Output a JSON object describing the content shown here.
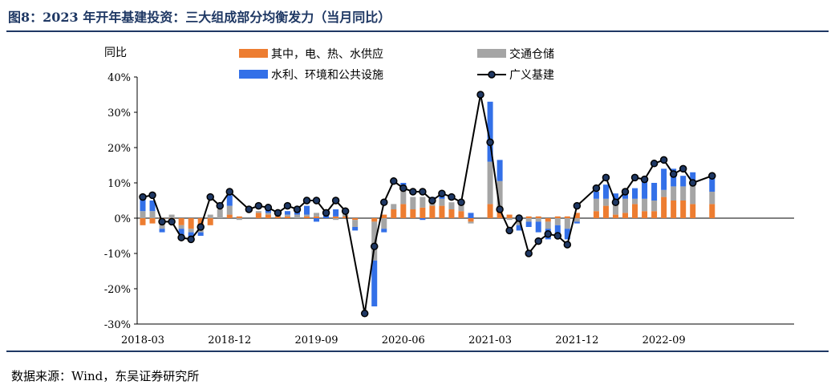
{
  "title": "图8：2023 年开年基建投资：三大组成部分均衡发力（当月同比）",
  "source": "数据来源：Wind，东吴证券研究所",
  "colors": {
    "utilities": "#ED7D31",
    "transport": "#A5A5A5",
    "water_env": "#3370E8",
    "line": "#000000",
    "marker_fill": "#1F3864",
    "title": "#1F3864"
  },
  "chart_data": {
    "type": "bar",
    "stacked": true,
    "ylabel": "同比",
    "ylim": [
      -30,
      40
    ],
    "yticks": [
      "-30%",
      "-20%",
      "-10%",
      "0%",
      "10%",
      "20%",
      "30%",
      "40%"
    ],
    "x_tick_labels": [
      "2018-03",
      "2018-12",
      "2019-09",
      "2020-06",
      "2021-03",
      "2021-12",
      "2022-09"
    ],
    "legend_placement": "top",
    "categories": [
      "2018-03",
      "2018-04",
      "2018-05",
      "2018-06",
      "2018-07",
      "2018-08",
      "2018-09",
      "2018-10",
      "2018-11",
      "2018-12",
      "2019-01",
      "2019-02",
      "2019-03",
      "2019-04",
      "2019-05",
      "2019-06",
      "2019-07",
      "2019-08",
      "2019-09",
      "2019-10",
      "2019-11",
      "2019-12",
      "2020-01",
      "2020-02",
      "2020-03",
      "2020-04",
      "2020-05",
      "2020-06",
      "2020-07",
      "2020-08",
      "2020-09",
      "2020-10",
      "2020-11",
      "2020-12",
      "2021-01",
      "2021-02",
      "2021-03",
      "2021-04",
      "2021-05",
      "2021-06",
      "2021-07",
      "2021-08",
      "2021-09",
      "2021-10",
      "2021-11",
      "2021-12",
      "2022-01",
      "2022-02",
      "2022-03",
      "2022-04",
      "2022-05",
      "2022-06",
      "2022-07",
      "2022-08",
      "2022-09",
      "2022-10",
      "2022-11",
      "2022-12",
      "2023-01",
      "2023-02"
    ],
    "series": [
      {
        "name": "其中，电、热、水供应",
        "kind": "bar",
        "values": [
          -2,
          -1.5,
          -1.5,
          -0.5,
          -2,
          -3,
          -3,
          -2,
          0,
          1,
          0.5,
          0,
          1.5,
          1,
          0.5,
          0.5,
          0,
          0.5,
          0.5,
          0,
          0.5,
          0.5,
          -0.5,
          null,
          -1,
          1,
          2.5,
          4,
          2.5,
          3,
          3.5,
          3.5,
          2.5,
          2,
          -1,
          null,
          4,
          2.5,
          1,
          -0.5,
          0.5,
          0.5,
          -1,
          0.5,
          0.5,
          1.5,
          null,
          2,
          3.5,
          1,
          1.5,
          4,
          2,
          2,
          6,
          5,
          5,
          4,
          null,
          4
        ]
      },
      {
        "name": "交通仓储",
        "kind": "bar",
        "values": [
          2,
          2,
          -1.5,
          1,
          -1,
          -1,
          -1,
          1,
          2.5,
          2.5,
          -0.5,
          0,
          0.5,
          0.5,
          0.5,
          0.5,
          1,
          0.5,
          1,
          0,
          -0.5,
          2,
          -2,
          null,
          -11,
          -3,
          1.5,
          4,
          3.5,
          3,
          1.5,
          2,
          2,
          2.5,
          -0.5,
          null,
          12,
          8,
          -0.5,
          -1.5,
          -1,
          -1,
          -2,
          -2,
          -3,
          -1,
          null,
          3.5,
          2,
          3,
          4,
          1.5,
          3.5,
          3,
          2,
          4,
          4,
          5.5,
          null,
          3.5
        ]
      },
      {
        "name": "水利、环境和公共设施",
        "kind": "bar",
        "values": [
          4,
          3,
          -1,
          -1,
          -2,
          -1.5,
          -1,
          0,
          0,
          3,
          0,
          0,
          0,
          2,
          0.5,
          1,
          2,
          2.5,
          -1,
          1,
          2,
          0,
          -1,
          null,
          -13,
          -1,
          0,
          2,
          0,
          -0.5,
          1,
          1,
          0,
          0.5,
          1.5,
          null,
          17,
          6,
          0,
          -1.5,
          -1.5,
          -3,
          -3,
          -2.5,
          -3,
          -0.5,
          null,
          2,
          4,
          3,
          2,
          3,
          6,
          5,
          6,
          5,
          3,
          3.5,
          null,
          4
        ]
      },
      {
        "name": "广义基建",
        "kind": "line",
        "values": [
          6,
          6.5,
          -1,
          -1,
          -5.5,
          -6,
          -2.5,
          6,
          3.5,
          7.5,
          null,
          2.5,
          3.5,
          3,
          1.5,
          3.5,
          2.5,
          5,
          5,
          1.5,
          5,
          2,
          null,
          -27,
          -8,
          4.5,
          10.5,
          8.5,
          7.5,
          7.5,
          5,
          7,
          6,
          4.5,
          null,
          35,
          21.5,
          2.5,
          -3.5,
          0,
          -10,
          -6.5,
          -4.5,
          -5,
          -7.5,
          3.5,
          null,
          8.5,
          11.5,
          4.5,
          7.5,
          11.5,
          11,
          15.5,
          16.5,
          12.5,
          14,
          10,
          null,
          12
        ]
      }
    ]
  }
}
